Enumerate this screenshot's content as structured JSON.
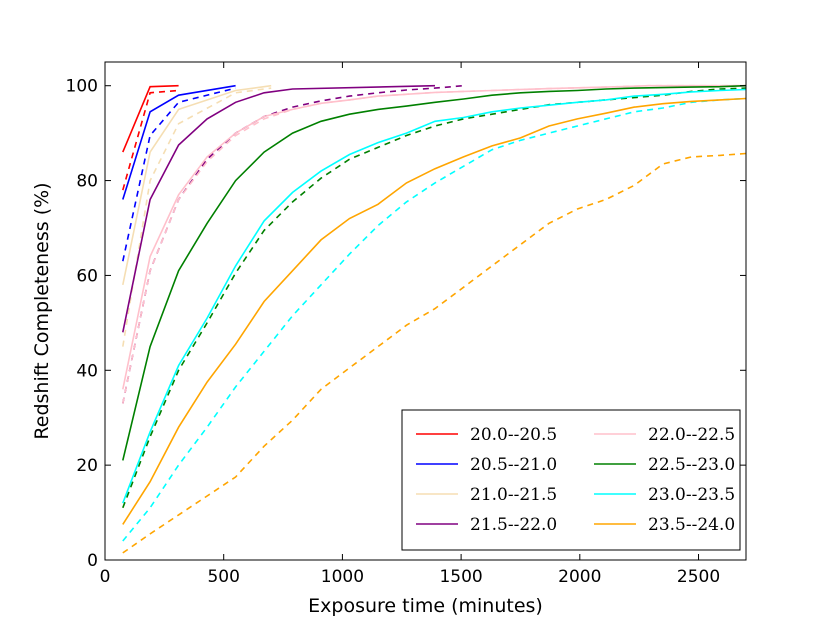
{
  "chart_data": {
    "type": "line",
    "title": "",
    "xlabel": "Exposure time (minutes)",
    "ylabel": "Redshift Completeness (%)",
    "xlim": [
      0,
      2700
    ],
    "ylim": [
      0,
      105
    ],
    "xticks": [
      0,
      500,
      1000,
      1500,
      2000,
      2500
    ],
    "yticks": [
      0,
      20,
      40,
      60,
      80,
      100
    ],
    "grid": false,
    "legend_placement": "lower-right",
    "legend_columns": 2,
    "line_styles": {
      "solid": "series values",
      "dashed": "comparison curve for same magnitude bin"
    },
    "series": [
      {
        "name": "20.0--20.5",
        "color": "#ff0000",
        "solid": {
          "x": [
            75,
            190,
            310
          ],
          "y": [
            86,
            99.8,
            100
          ]
        },
        "dashed": {
          "x": [
            75,
            190,
            310
          ],
          "y": [
            78,
            98.5,
            99
          ]
        }
      },
      {
        "name": "20.5--21.0",
        "color": "#0000ff",
        "solid": {
          "x": [
            75,
            190,
            310,
            550
          ],
          "y": [
            76,
            94.5,
            98,
            100
          ]
        },
        "dashed": {
          "x": [
            75,
            190,
            310,
            550
          ],
          "y": [
            63,
            89.5,
            96.5,
            99.5
          ]
        }
      },
      {
        "name": "21.0--21.5",
        "color": "#f5deb3",
        "solid": {
          "x": [
            75,
            190,
            310,
            550,
            700
          ],
          "y": [
            58,
            86,
            95,
            99,
            100
          ]
        },
        "dashed": {
          "x": [
            75,
            190,
            310,
            550,
            700
          ],
          "y": [
            45,
            80,
            92,
            98.5,
            99.5
          ]
        }
      },
      {
        "name": "21.5--22.0",
        "color": "#800080",
        "solid": {
          "x": [
            75,
            190,
            310,
            430,
            550,
            670,
            790,
            1390
          ],
          "y": [
            48,
            76,
            87.5,
            93,
            96.5,
            98.5,
            99.3,
            100
          ]
        },
        "dashed": {
          "x": [
            75,
            190,
            310,
            430,
            550,
            670,
            790,
            910,
            1030,
            1150,
            1270,
            1390,
            1510
          ],
          "y": [
            33,
            61,
            76,
            84.5,
            90,
            93.5,
            95.5,
            96.8,
            97.8,
            98.5,
            99.1,
            99.5,
            100
          ]
        }
      },
      {
        "name": "22.0--22.5",
        "color": "#ffc0cb",
        "solid": {
          "x": [
            75,
            190,
            310,
            430,
            550,
            670,
            790,
            910,
            1030,
            1150,
            1390,
            1630,
            1870,
            2110,
            2290,
            2700
          ],
          "y": [
            36,
            64,
            77,
            85,
            90,
            93.5,
            95,
            96.3,
            97,
            97.8,
            98.6,
            99,
            99.4,
            99.7,
            100,
            100
          ]
        },
        "dashed": {
          "x": [
            75,
            190,
            310,
            430,
            550,
            670,
            790,
            910,
            1030,
            1150,
            1390,
            1630,
            1870,
            2110,
            2290,
            2700
          ],
          "y": [
            33,
            61,
            76,
            84,
            89.5,
            93,
            95,
            96.3,
            97,
            97.8,
            98.6,
            99,
            99.4,
            99.7,
            100,
            100
          ]
        }
      },
      {
        "name": "22.5--23.0",
        "color": "#008000",
        "solid": {
          "x": [
            75,
            190,
            310,
            430,
            550,
            670,
            790,
            910,
            1030,
            1150,
            1270,
            1390,
            1510,
            1630,
            1750,
            1870,
            1990,
            2110,
            2230,
            2350,
            2470,
            2590,
            2700
          ],
          "y": [
            21,
            45,
            61,
            71,
            80,
            86,
            90,
            92.5,
            94,
            95,
            95.7,
            96.5,
            97.2,
            98,
            98.5,
            98.8,
            99,
            99.3,
            99.5,
            99.6,
            99.7,
            99.8,
            100
          ]
        },
        "dashed": {
          "x": [
            75,
            190,
            310,
            430,
            550,
            670,
            790,
            910,
            1030,
            1150,
            1270,
            1390,
            1510,
            1630,
            1750,
            1870,
            1990,
            2110,
            2230,
            2350,
            2470,
            2590,
            2700
          ],
          "y": [
            11,
            26,
            40,
            50,
            60.5,
            69.5,
            75.5,
            80.5,
            84.5,
            87,
            89.5,
            91.5,
            93,
            94,
            95,
            96,
            96.5,
            97,
            97.5,
            98,
            98.8,
            99.3,
            99.5
          ]
        }
      },
      {
        "name": "23.0--23.5",
        "color": "#00ffff",
        "solid": {
          "x": [
            75,
            190,
            310,
            430,
            550,
            670,
            790,
            910,
            1030,
            1150,
            1270,
            1390,
            1510,
            1630,
            1750,
            1870,
            1990,
            2110,
            2230,
            2350,
            2470,
            2590,
            2700
          ],
          "y": [
            12,
            27,
            41,
            51,
            62,
            71.5,
            77.5,
            82,
            85.5,
            88,
            90,
            92.5,
            93.3,
            94.5,
            95.3,
            95.9,
            96.5,
            97,
            97.8,
            98.2,
            98.7,
            99,
            99.2
          ]
        },
        "dashed": {
          "x": [
            75,
            190,
            310,
            430,
            550,
            670,
            790,
            910,
            1030,
            1150,
            1270,
            1390,
            1510,
            1630,
            1750,
            1870,
            1990,
            2110,
            2230,
            2350,
            2470,
            2590,
            2700
          ],
          "y": [
            4,
            11,
            20,
            28,
            36.5,
            44,
            51.5,
            58,
            64.5,
            70.5,
            75.5,
            79.5,
            83,
            86.5,
            88.5,
            90,
            91.5,
            93,
            94.5,
            95.3,
            96.5,
            97,
            97.3
          ]
        }
      },
      {
        "name": "23.5--24.0",
        "color": "#ffa500",
        "solid": {
          "x": [
            75,
            190,
            310,
            430,
            550,
            670,
            790,
            910,
            1030,
            1150,
            1270,
            1390,
            1510,
            1630,
            1750,
            1870,
            1990,
            2110,
            2230,
            2350,
            2470,
            2590,
            2700
          ],
          "y": [
            7.5,
            16.5,
            28,
            37.5,
            45.5,
            54.5,
            61,
            67.5,
            72,
            75,
            79.5,
            82.5,
            85,
            87.3,
            89,
            91.5,
            93,
            94.2,
            95.5,
            96.2,
            96.7,
            97,
            97.3
          ]
        },
        "dashed": {
          "x": [
            75,
            190,
            310,
            430,
            550,
            670,
            790,
            910,
            1030,
            1150,
            1270,
            1390,
            1510,
            1630,
            1750,
            1870,
            1990,
            2110,
            2230,
            2350,
            2470,
            2590,
            2700
          ],
          "y": [
            1.5,
            5.5,
            9.5,
            13.5,
            17.5,
            24,
            29.5,
            36,
            40.5,
            45,
            49.5,
            53,
            57.5,
            62,
            66.5,
            71,
            74,
            76,
            79,
            83.5,
            85,
            85.3,
            85.7
          ]
        }
      }
    ]
  }
}
